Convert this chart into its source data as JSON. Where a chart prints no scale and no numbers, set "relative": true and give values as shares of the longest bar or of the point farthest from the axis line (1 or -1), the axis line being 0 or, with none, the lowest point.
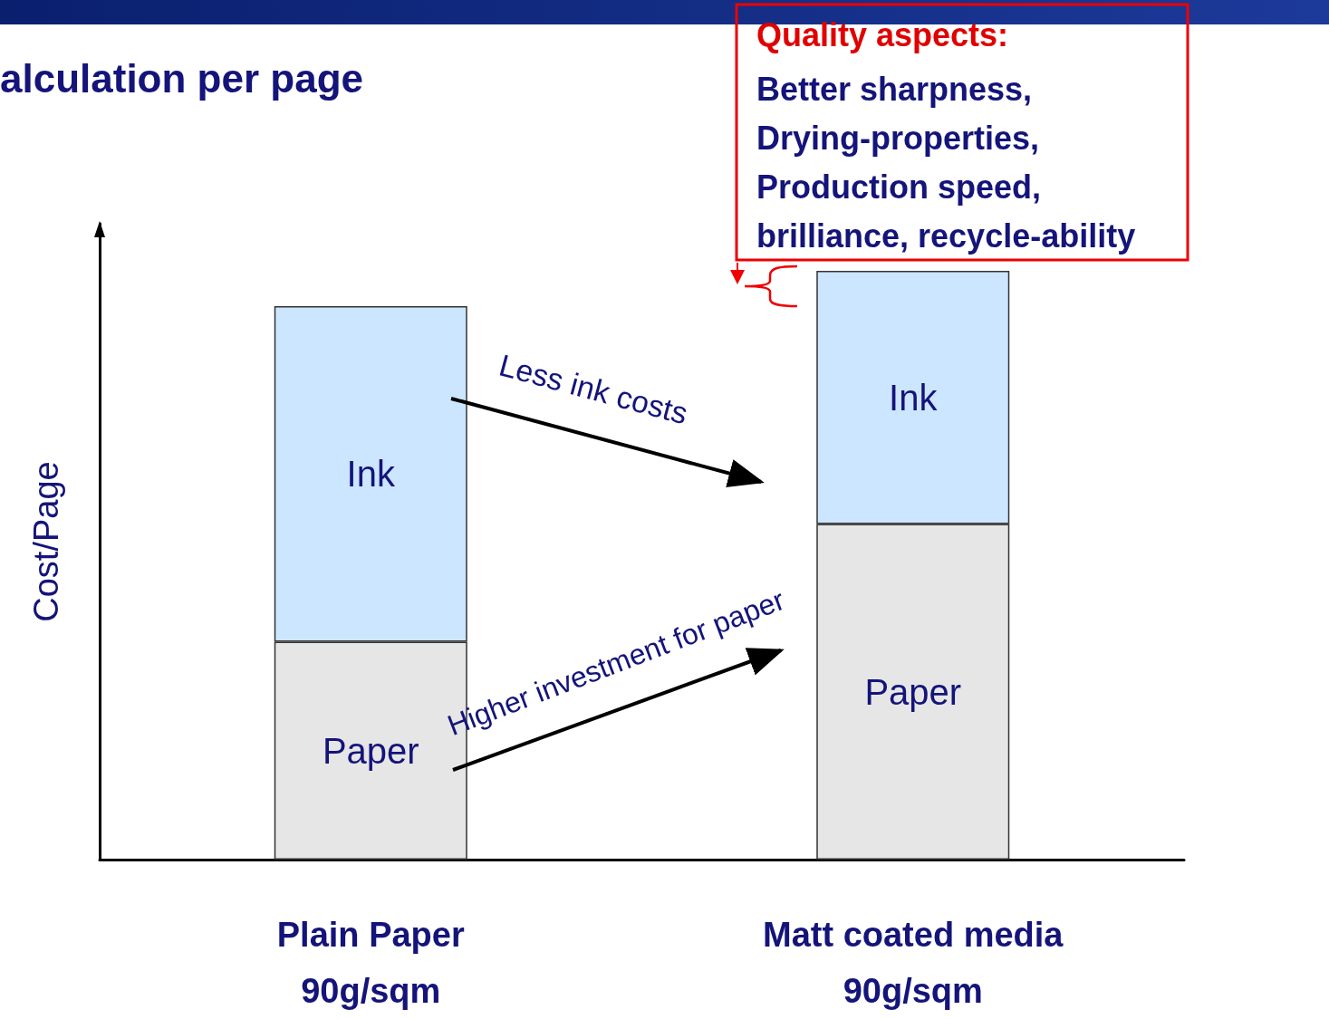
{
  "chart_data": {
    "type": "bar",
    "title": "alculation per page",
    "ylabel": "Cost/Page",
    "categories": [
      "Plain Paper\n90g/sqm",
      "Matt coated media\n90g/sqm"
    ],
    "stacked": true,
    "relative": true,
    "series": [
      {
        "name": "Paper",
        "color": "#e6e6e6",
        "values": [
          0.37,
          0.57
        ]
      },
      {
        "name": "Ink",
        "color": "#cce6ff",
        "values": [
          0.57,
          0.43
        ]
      }
    ],
    "annotations": [
      "Quality aspects:",
      "Better sharpness,\nDrying-properties,\nProduction speed,\nbrilliance, recycle-ability",
      "Less ink costs",
      "Higher investment for paper"
    ]
  }
}
